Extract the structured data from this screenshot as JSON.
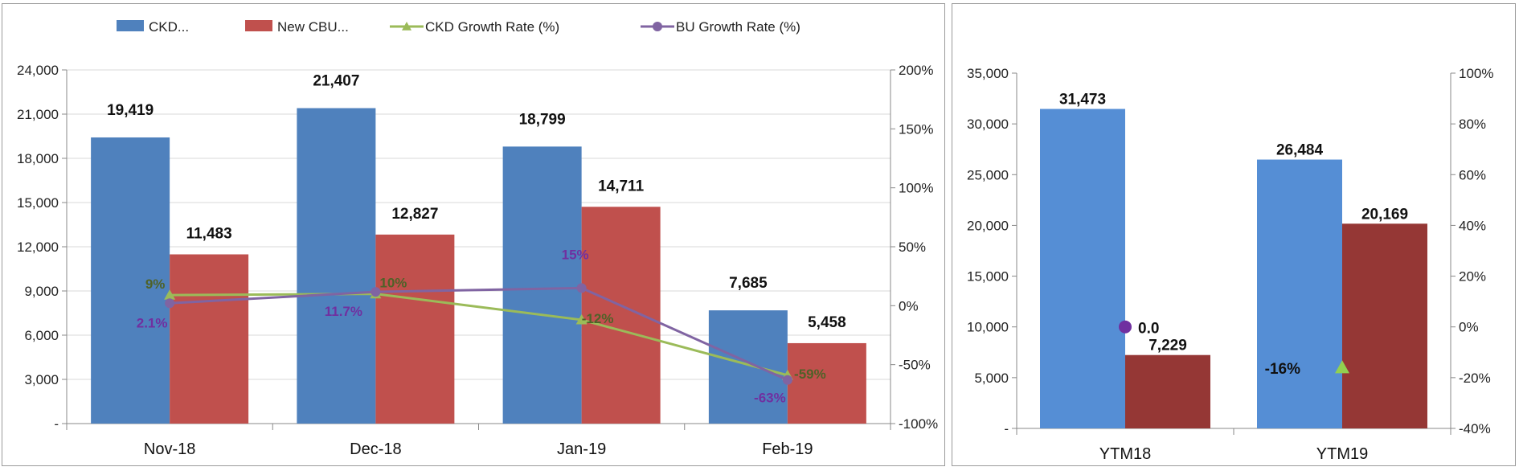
{
  "chart_data": [
    {
      "type": "bar",
      "categories": [
        "Nov-18",
        "Dec-18",
        "Jan-19",
        "Feb-19"
      ],
      "legend": {
        "placement": "top",
        "entries": [
          {
            "label": "CKD...",
            "kind": "bar",
            "color": "#4f81bd"
          },
          {
            "label": "New CBU...",
            "kind": "bar",
            "color": "#c0504d"
          },
          {
            "label": "CKD Growth Rate (%)",
            "kind": "line",
            "marker": "triangle",
            "color": "#9bbb59"
          },
          {
            "label": "BU Growth Rate (%)",
            "kind": "line",
            "marker": "circle",
            "color": "#8064a2"
          }
        ]
      },
      "series": [
        {
          "name": "CKD...",
          "type": "bar",
          "axis": "left",
          "color": "#4f81bd",
          "values": [
            19419,
            21407,
            18799,
            7685
          ],
          "labels": [
            "19,419",
            "21,407",
            "18,799",
            "7,685"
          ]
        },
        {
          "name": "New CBU...",
          "type": "bar",
          "axis": "left",
          "color": "#c0504d",
          "values": [
            11483,
            12827,
            14711,
            5458
          ],
          "labels": [
            "11,483",
            "12,827",
            "14,711",
            "5,458"
          ]
        },
        {
          "name": "CKD Growth Rate (%)",
          "type": "line",
          "axis": "right",
          "marker": "triangle",
          "color": "#9bbb59",
          "label_color": "#4f6228",
          "values": [
            9,
            10,
            -12,
            -59
          ],
          "labels": [
            "9%",
            "10%",
            "-12%",
            "-59%"
          ]
        },
        {
          "name": "BU Growth Rate (%)",
          "type": "line",
          "axis": "right",
          "marker": "circle",
          "color": "#8064a2",
          "label_color": "#7030a0",
          "values": [
            2.1,
            11.7,
            15,
            -63
          ],
          "labels": [
            "2.1%",
            "11.7%",
            "15%",
            "-63%"
          ]
        }
      ],
      "y_left": {
        "min": 0,
        "max": 24000,
        "step": 3000,
        "tick_labels": [
          "-",
          "3,000",
          "6,000",
          "9,000",
          "12,000",
          "15,000",
          "18,000",
          "21,000",
          "24,000"
        ]
      },
      "y_right": {
        "min": -100,
        "max": 200,
        "step": 50,
        "tick_labels": [
          "-100%",
          "-50%",
          "0%",
          "50%",
          "100%",
          "150%",
          "200%"
        ]
      },
      "grid": true
    },
    {
      "type": "bar",
      "categories": [
        "YTM18",
        "YTM19"
      ],
      "series": [
        {
          "name": "CKD",
          "type": "bar",
          "axis": "left",
          "color": "#558ed5",
          "values": [
            31473,
            26484
          ],
          "labels": [
            "31,473",
            "26,484"
          ]
        },
        {
          "name": "New CBU",
          "type": "bar",
          "axis": "left",
          "color": "#953735",
          "values": [
            7229,
            20169
          ],
          "labels": [
            "7,229",
            "20,169"
          ]
        },
        {
          "name": "BU Growth Rate",
          "type": "point",
          "axis": "right",
          "marker": "circle",
          "color": "#7030a0",
          "points": [
            {
              "category": "YTM18",
              "value": 0,
              "label": "0.0"
            }
          ]
        },
        {
          "name": "CKD Growth Rate",
          "type": "point",
          "axis": "right",
          "marker": "triangle",
          "color": "#92d050",
          "points": [
            {
              "category": "YTM19",
              "value": -16,
              "label": "-16%"
            }
          ]
        }
      ],
      "y_left": {
        "min": 0,
        "max": 35000,
        "step": 5000,
        "tick_labels": [
          "-",
          "5,000",
          "10,000",
          "15,000",
          "20,000",
          "25,000",
          "30,000",
          "35,000"
        ]
      },
      "y_right": {
        "min": -40,
        "max": 100,
        "step": 20,
        "tick_labels": [
          "-40%",
          "-20%",
          "0%",
          "20%",
          "40%",
          "60%",
          "80%",
          "100%"
        ]
      },
      "grid": false
    }
  ]
}
